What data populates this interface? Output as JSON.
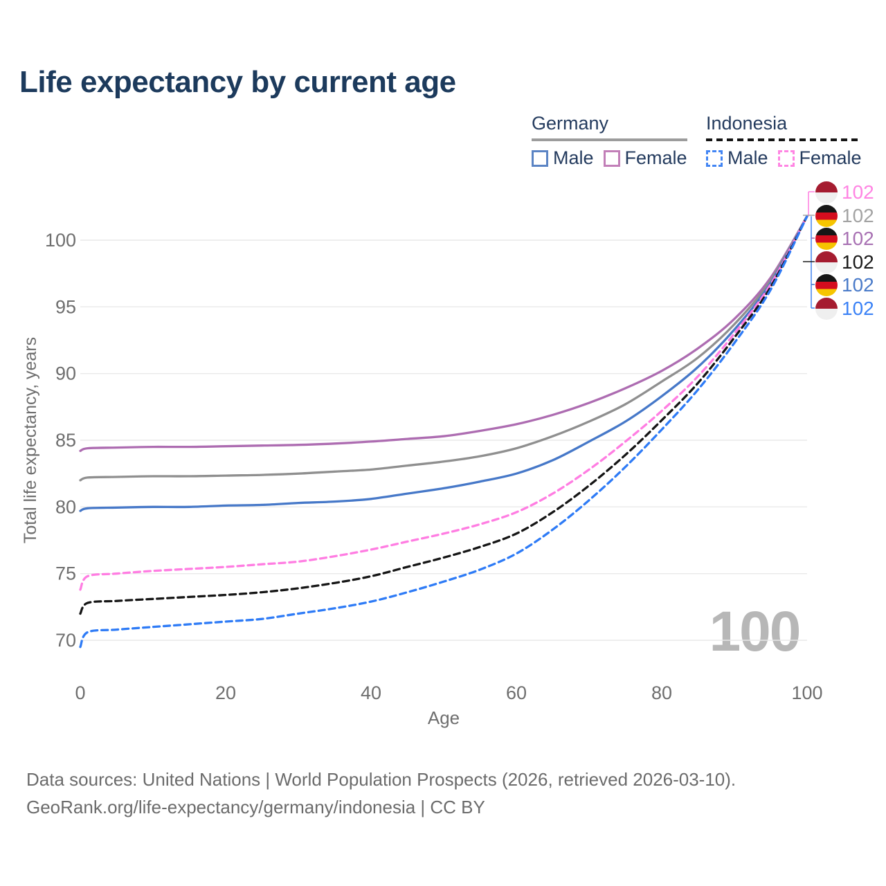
{
  "title": "Life expectancy by current age",
  "legend": {
    "groups": [
      {
        "label": "Germany",
        "line_style": "solid",
        "line_color": "#9c9c9c",
        "items": [
          {
            "label": "Male",
            "swatch_color": "#5b84c4",
            "swatch_style": "solid"
          },
          {
            "label": "Female",
            "swatch_color": "#c27fb8",
            "swatch_style": "solid"
          }
        ]
      },
      {
        "label": "Indonesia",
        "line_style": "dashed",
        "line_color": "#141414",
        "items": [
          {
            "label": "Male",
            "swatch_color": "#4285f4",
            "swatch_style": "dashed"
          },
          {
            "label": "Female",
            "swatch_color": "#ff85e3",
            "swatch_style": "dashed"
          }
        ]
      }
    ]
  },
  "chart_data": {
    "type": "line",
    "title": "Life expectancy by current age",
    "xlabel": "Age",
    "ylabel": "Total life expectancy, years",
    "xlim": [
      0,
      100
    ],
    "ylim": [
      69,
      102.5
    ],
    "x_ticks": [
      0,
      20,
      40,
      60,
      80,
      100
    ],
    "y_ticks": [
      70,
      75,
      80,
      85,
      90,
      95,
      100
    ],
    "grid": "horizontal",
    "legend_position": "top-right",
    "watermark": "100",
    "x": [
      0,
      1,
      5,
      10,
      15,
      20,
      25,
      30,
      35,
      40,
      45,
      50,
      55,
      60,
      65,
      70,
      75,
      80,
      85,
      90,
      95,
      100
    ],
    "series": [
      {
        "name": "Germany Female",
        "country": "Germany",
        "color": "#ad6cb1",
        "dash": null,
        "values": [
          84.2,
          84.4,
          84.45,
          84.5,
          84.5,
          84.55,
          84.6,
          84.65,
          84.75,
          84.9,
          85.1,
          85.3,
          85.7,
          86.2,
          86.9,
          87.8,
          88.9,
          90.2,
          91.9,
          94.1,
          97.2,
          101.8
        ]
      },
      {
        "name": "Germany",
        "country": "Germany",
        "color": "#8f8f8f",
        "dash": null,
        "values": [
          82.0,
          82.2,
          82.25,
          82.3,
          82.3,
          82.35,
          82.4,
          82.5,
          82.65,
          82.8,
          83.1,
          83.4,
          83.8,
          84.4,
          85.3,
          86.4,
          87.7,
          89.4,
          91.2,
          93.7,
          97.0,
          101.8
        ]
      },
      {
        "name": "Germany Male",
        "country": "Germany",
        "color": "#4678c8",
        "dash": null,
        "values": [
          79.7,
          79.9,
          79.95,
          80.0,
          80.0,
          80.1,
          80.15,
          80.3,
          80.4,
          80.6,
          81.0,
          81.4,
          81.9,
          82.5,
          83.5,
          84.9,
          86.4,
          88.3,
          90.5,
          93.3,
          96.8,
          101.8
        ]
      },
      {
        "name": "Indonesia Female",
        "country": "Indonesia",
        "color": "#ff7de2",
        "dash": [
          9,
          6
        ],
        "values": [
          73.8,
          74.8,
          75.0,
          75.2,
          75.35,
          75.5,
          75.7,
          75.9,
          76.3,
          76.8,
          77.4,
          78.0,
          78.7,
          79.6,
          81.0,
          82.8,
          84.9,
          87.2,
          89.8,
          93.0,
          96.7,
          101.8
        ]
      },
      {
        "name": "Indonesia",
        "country": "Indonesia",
        "color": "#151515",
        "dash": [
          9,
          6
        ],
        "values": [
          72.0,
          72.8,
          72.95,
          73.1,
          73.25,
          73.4,
          73.6,
          73.9,
          74.3,
          74.8,
          75.5,
          76.2,
          77.0,
          78.0,
          79.6,
          81.6,
          83.9,
          86.5,
          89.3,
          92.7,
          96.5,
          101.8
        ]
      },
      {
        "name": "Indonesia Male",
        "country": "Indonesia",
        "color": "#2e7bf6",
        "dash": [
          9,
          6
        ],
        "values": [
          69.5,
          70.6,
          70.8,
          71.0,
          71.2,
          71.4,
          71.6,
          72.0,
          72.4,
          72.9,
          73.6,
          74.4,
          75.3,
          76.5,
          78.3,
          80.5,
          83.0,
          85.8,
          88.8,
          92.3,
          96.3,
          101.8
        ]
      }
    ],
    "end_value": 101.8,
    "end_labels": [
      {
        "value": "102",
        "flag": "indonesia",
        "series": "Indonesia Female",
        "color": "#ff85e3"
      },
      {
        "value": "102",
        "flag": "germany",
        "series": "Germany",
        "color": "#a3a3a3"
      },
      {
        "value": "102",
        "flag": "germany",
        "series": "Germany Female",
        "color": "#a871b3"
      },
      {
        "value": "102",
        "flag": "indonesia",
        "series": "Indonesia",
        "color": "#1a1a1a"
      },
      {
        "value": "102",
        "flag": "germany",
        "series": "Germany Male",
        "color": "#4a7bc9"
      },
      {
        "value": "102",
        "flag": "indonesia",
        "series": "Indonesia Male",
        "color": "#3b82f6"
      }
    ]
  },
  "footer": {
    "line1": "Data sources: United Nations | World Population Prospects (2026, retrieved 2026-03-10).",
    "line2": "GeoRank.org/life-expectancy/germany/indonesia | CC BY"
  }
}
